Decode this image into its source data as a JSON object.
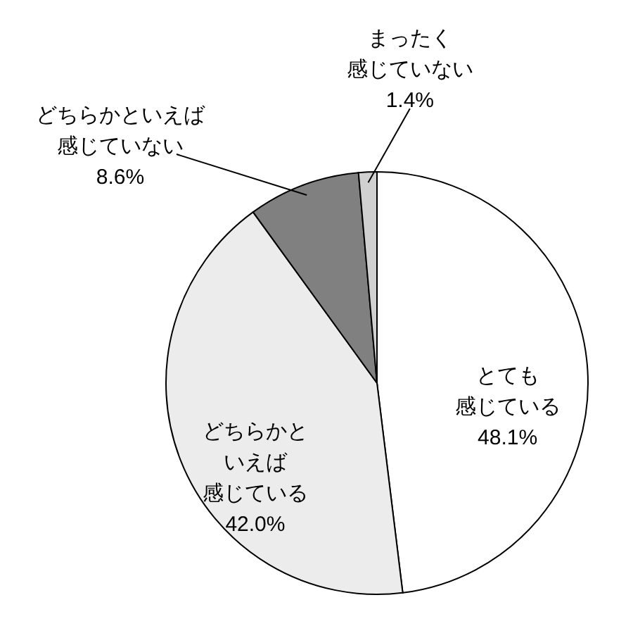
{
  "chart_data": {
    "type": "pie",
    "categories": [
      "とても感じている",
      "どちらかといえば感じている",
      "どちらかといえば感じていない",
      "まったく感じていない"
    ],
    "values": [
      48.1,
      42.0,
      8.6,
      1.4
    ],
    "value_labels": [
      "48.1%",
      "42.0%",
      "8.6%",
      "1.4%"
    ],
    "colors": [
      "#ffffff",
      "#ececec",
      "#808080",
      "#d0d0d0"
    ]
  }
}
